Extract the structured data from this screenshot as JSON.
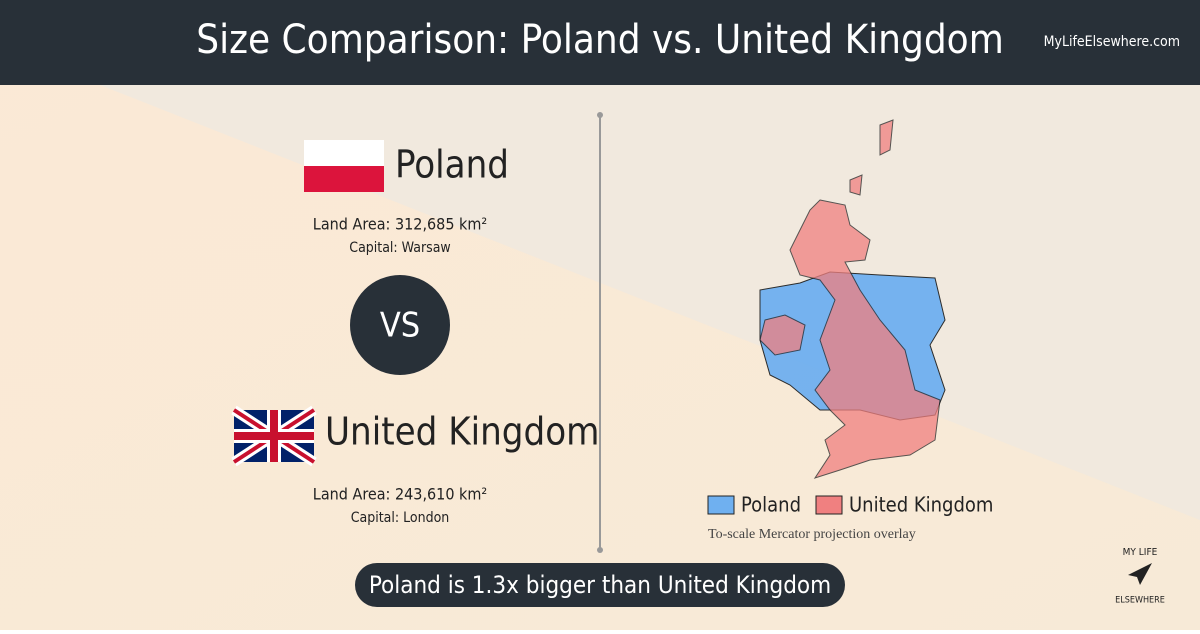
{
  "header": {
    "title": "Size Comparison: Poland vs. United Kingdom",
    "site": "MyLifeElsewhere.com"
  },
  "countries": [
    {
      "name": "Poland",
      "land_area": "Land Area: 312,685 km²",
      "capital": "Capital: Warsaw"
    },
    {
      "name": "United Kingdom",
      "land_area": "Land Area: 243,610 km²",
      "capital": "Capital: London"
    }
  ],
  "vs": "VS",
  "legend": {
    "items": [
      "Poland",
      "United Kingdom"
    ],
    "note": "To-scale Mercator projection overlay"
  },
  "conclusion": "Poland is 1.3x bigger than United Kingdom",
  "logo": {
    "top": "MY LIFE",
    "bottom": "ELSEWHERE"
  }
}
